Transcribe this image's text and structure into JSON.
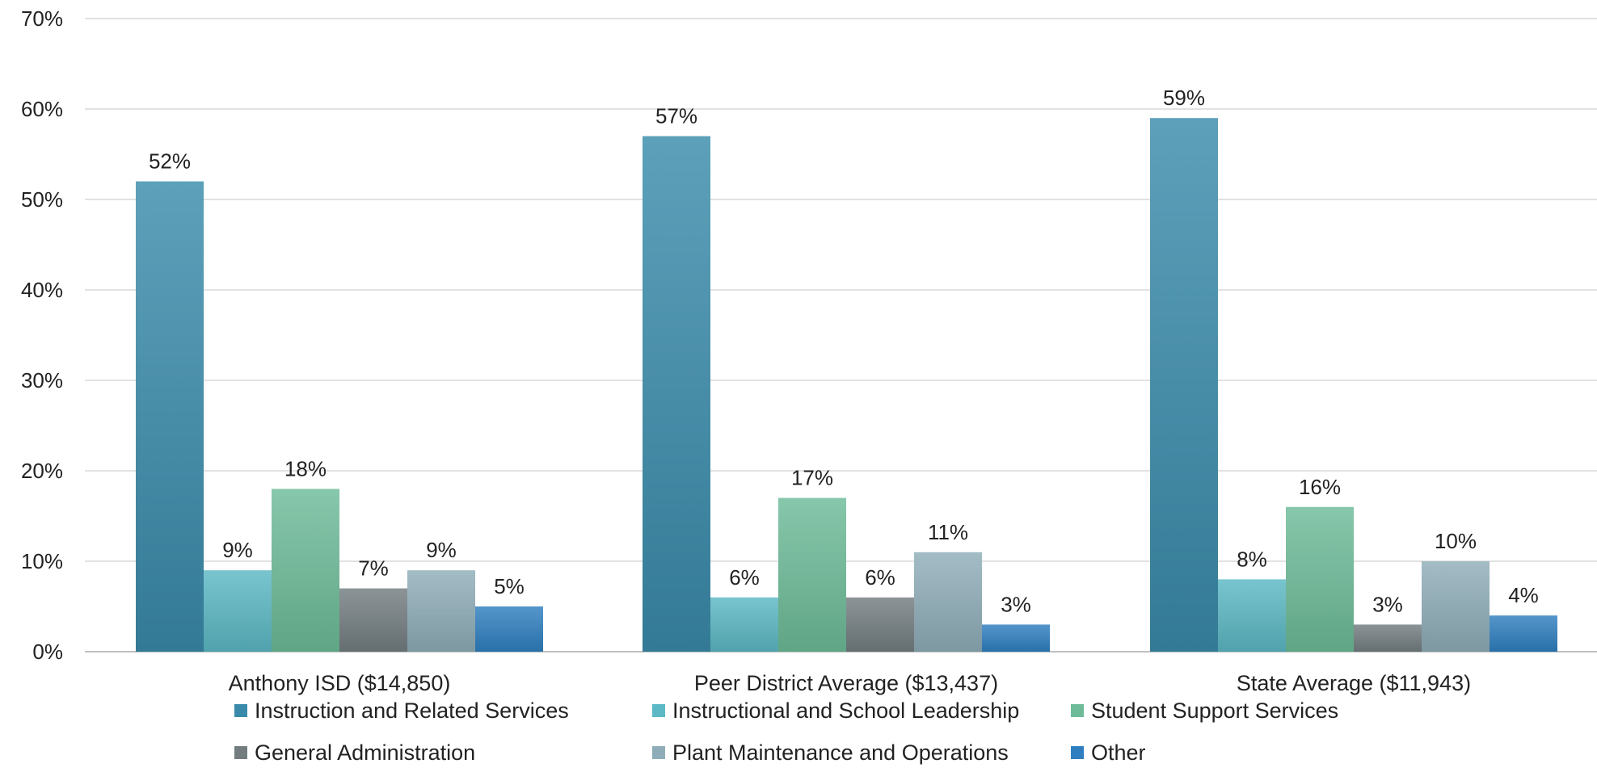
{
  "chart_data": {
    "type": "bar",
    "categories": [
      "Anthony ISD ($14,850)",
      "Peer District Average ($13,437)",
      "State Average ($11,943)"
    ],
    "series": [
      {
        "name": "Instruction and Related Services",
        "values": [
          52,
          57,
          59
        ],
        "labels": [
          "52%",
          "57%",
          "59%"
        ],
        "color": "#3a8bab"
      },
      {
        "name": "Instructional and School Leadership",
        "values": [
          9,
          6,
          8
        ],
        "labels": [
          "9%",
          "6%",
          "8%"
        ],
        "color": "#5bb8c4"
      },
      {
        "name": "Student Support Services",
        "values": [
          18,
          17,
          16
        ],
        "labels": [
          "18%",
          "17%",
          "16%"
        ],
        "color": "#6dbb98"
      },
      {
        "name": "General Administration",
        "values": [
          7,
          6,
          3
        ],
        "labels": [
          "7%",
          "6%",
          "3%"
        ],
        "color": "#737d80"
      },
      {
        "name": "Plant Maintenance and Operations",
        "values": [
          9,
          11,
          10
        ],
        "labels": [
          "9%",
          "11%",
          "10%"
        ],
        "color": "#8fadb8"
      },
      {
        "name": "Other",
        "values": [
          5,
          3,
          4
        ],
        "labels": [
          "5%",
          "3%",
          "4%"
        ],
        "color": "#2f7fc0"
      }
    ],
    "ylim": [
      0,
      70
    ],
    "yticks": [
      0,
      10,
      20,
      30,
      40,
      50,
      60,
      70
    ],
    "ytick_labels": [
      "0%",
      "10%",
      "20%",
      "30%",
      "40%",
      "50%",
      "60%",
      "70%"
    ],
    "grid": true,
    "legend_position": "bottom",
    "title": "",
    "xlabel": "",
    "ylabel": ""
  }
}
